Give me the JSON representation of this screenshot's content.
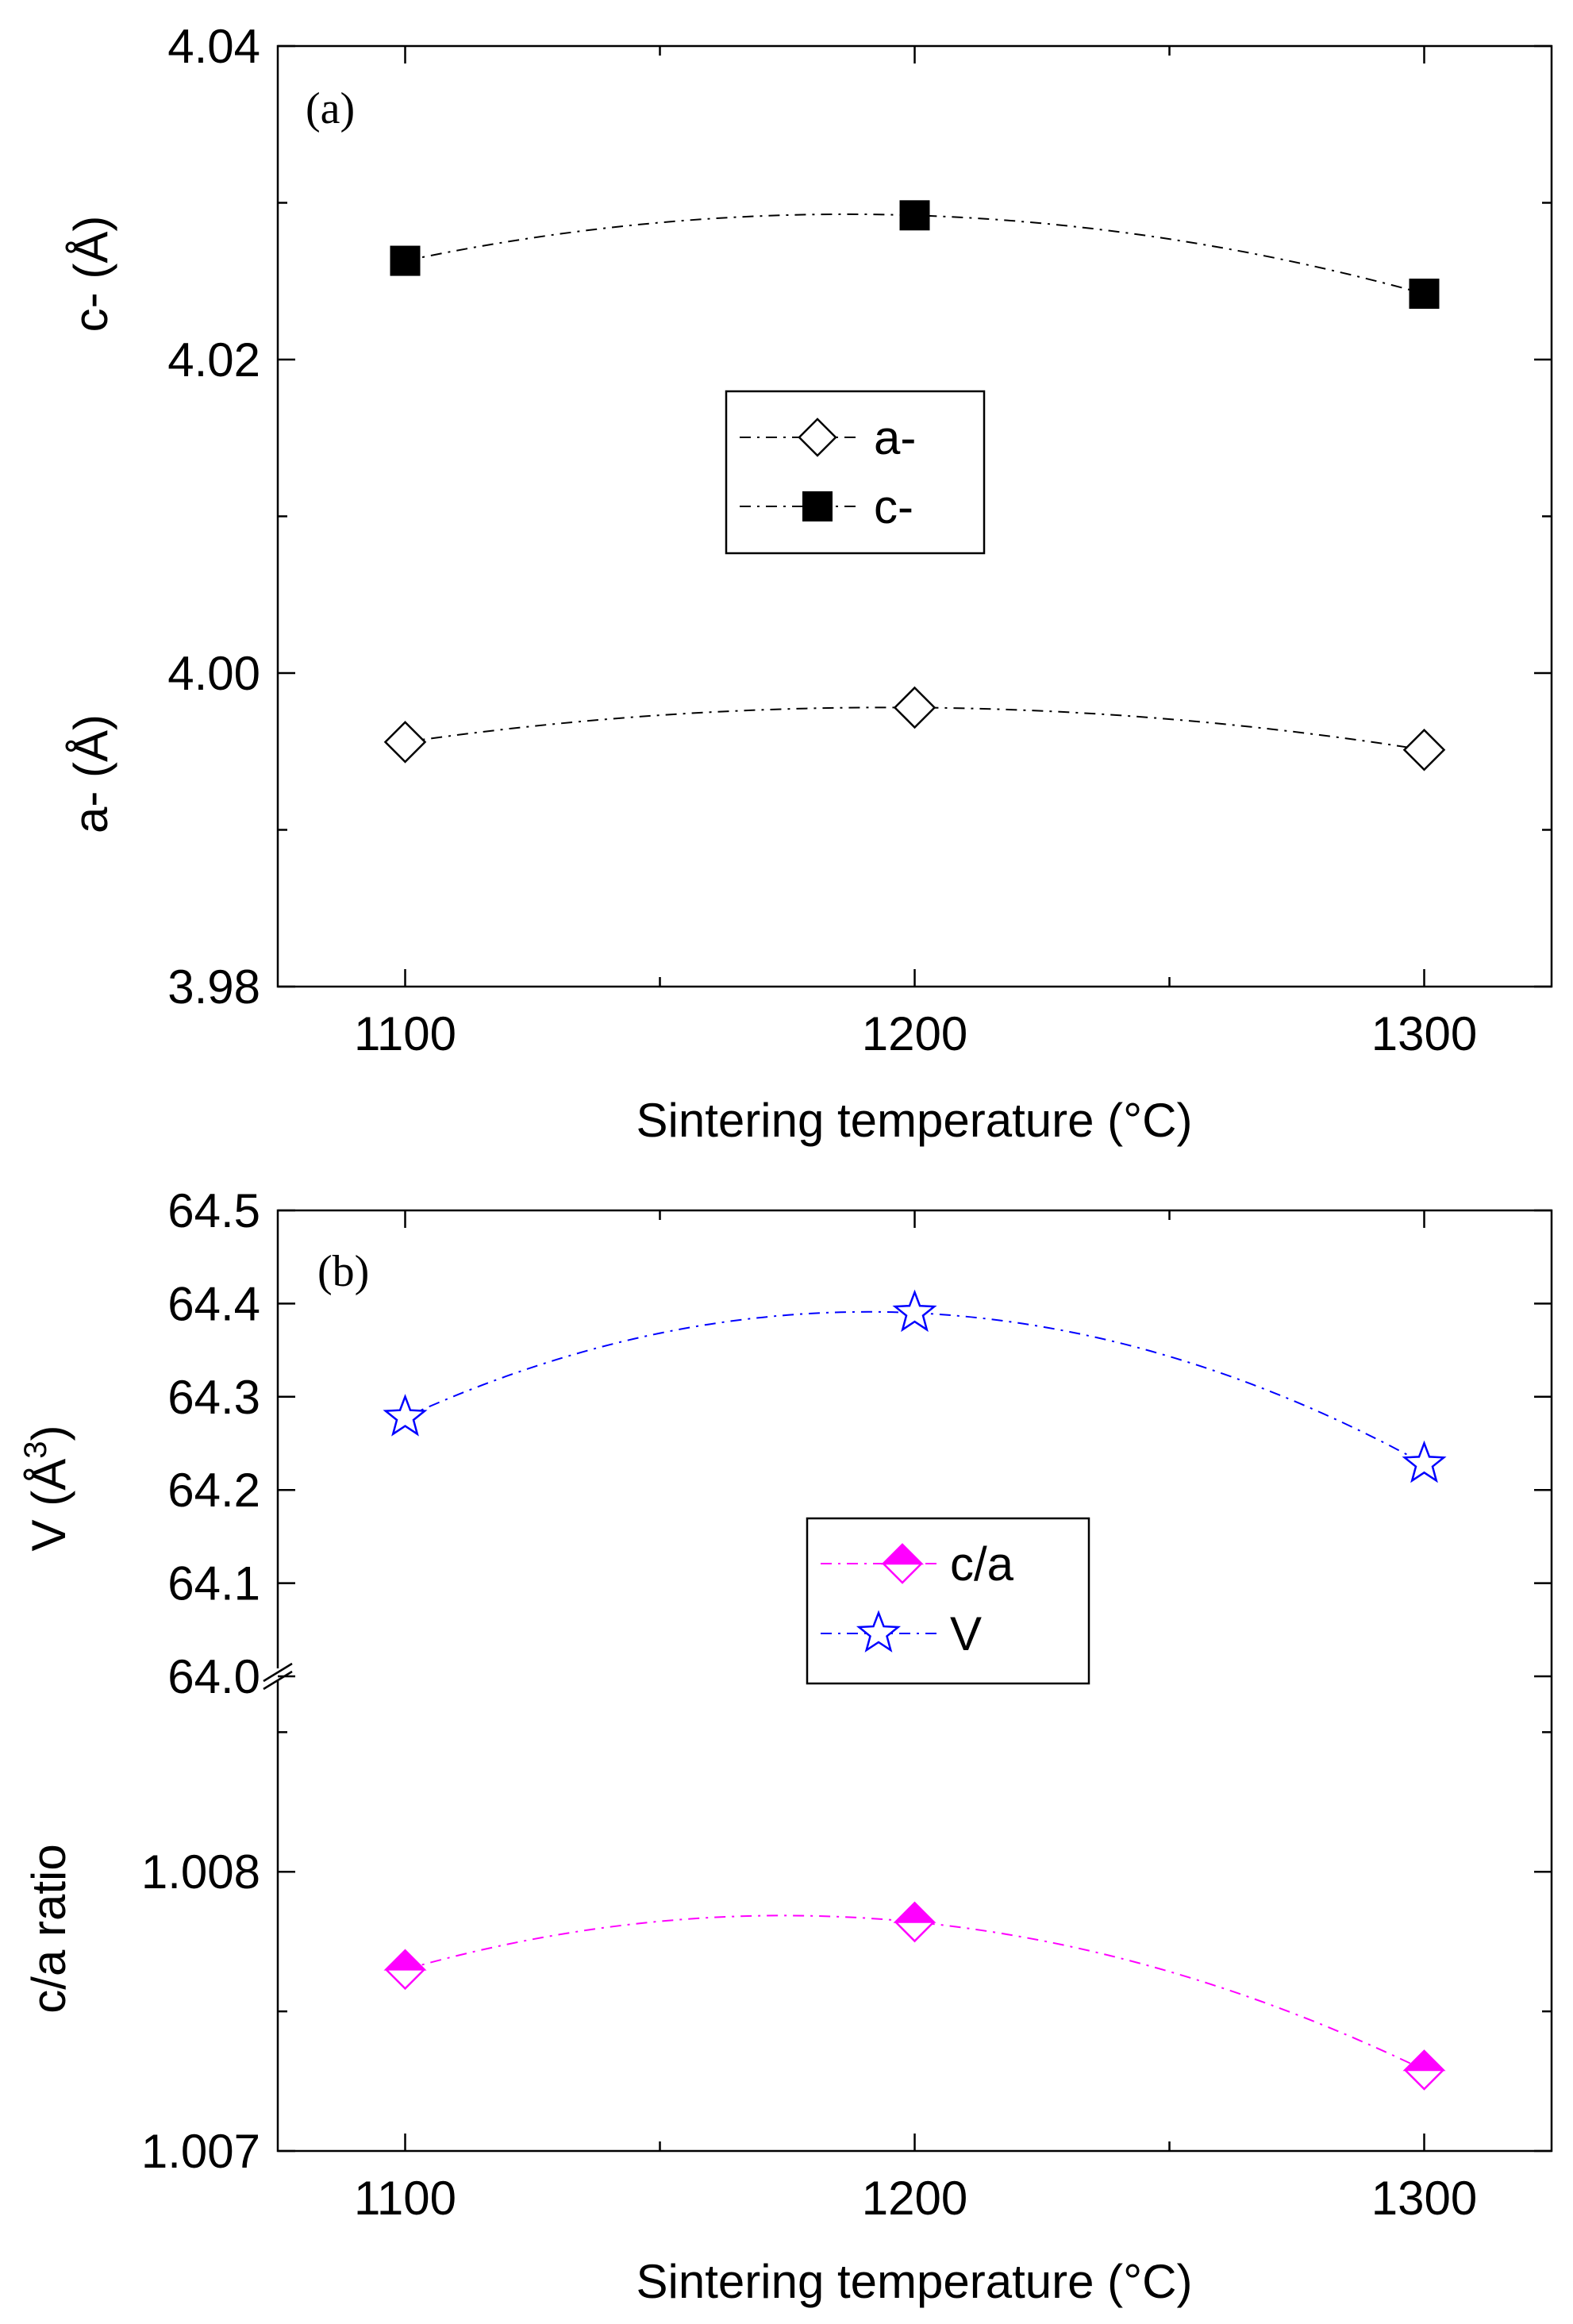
{
  "chart_data": [
    {
      "type": "line",
      "panel_label": "(a)",
      "xlabel": "Sintering temperature (°C)",
      "xlim": [
        1075,
        1325
      ],
      "xticks": [
        1100,
        1200,
        1300
      ],
      "xtick_labels": [
        "1100",
        "1200",
        "1300"
      ],
      "ylim": [
        3.98,
        4.04
      ],
      "yticks": [
        3.98,
        4.0,
        4.02,
        4.04
      ],
      "ytick_labels": [
        "3.98",
        "4.00",
        "4.02",
        "4.04"
      ],
      "ylabel_upper": "c- (Å)",
      "ylabel_lower": "a- (Å)",
      "grid": false,
      "legend_position": "center",
      "series": [
        {
          "name": "a-",
          "marker": "open-diamond",
          "color": "#000000",
          "x": [
            1100,
            1200,
            1300
          ],
          "values": [
            3.9956,
            3.9978,
            3.9951
          ]
        },
        {
          "name": "c-",
          "marker": "filled-square",
          "color": "#000000",
          "x": [
            1100,
            1200,
            1300
          ],
          "values": [
            4.0263,
            4.0292,
            4.0242
          ]
        }
      ]
    },
    {
      "type": "line",
      "panel_label": "(b)",
      "xlabel": "Sintering temperature (°C)",
      "xlim": [
        1075,
        1325
      ],
      "xticks": [
        1100,
        1200,
        1300
      ],
      "xtick_labels": [
        "1100",
        "1200",
        "1300"
      ],
      "upper_axis": {
        "ylabel": "V (Å",
        "ylabel_sup": "3",
        "ylabel_close": ")",
        "ylim": [
          64.0,
          64.5
        ],
        "yticks": [
          64.0,
          64.1,
          64.2,
          64.3,
          64.4,
          64.5
        ],
        "ytick_labels": [
          "64.0",
          "64.1",
          "64.2",
          "64.3",
          "64.4",
          "64.5"
        ]
      },
      "lower_axis": {
        "ylabel": "c/a ratio",
        "ylim": [
          1.007,
          1.0087
        ],
        "yticks": [
          1.007,
          1.008
        ],
        "ytick_labels": [
          "1.007",
          "1.008"
        ]
      },
      "axis_break": true,
      "grid": false,
      "legend_position": "center",
      "series": [
        {
          "name": "c/a",
          "marker": "half-filled-diamond",
          "color": "#ff00ff",
          "axis": "lower",
          "x": [
            1100,
            1200,
            1300
          ],
          "values": [
            1.00765,
            1.00782,
            1.00729
          ]
        },
        {
          "name": "V",
          "marker": "open-star",
          "color": "#0000ff",
          "axis": "upper",
          "x": [
            1100,
            1200,
            1300
          ],
          "values": [
            64.278,
            64.39,
            64.228
          ]
        }
      ]
    }
  ]
}
